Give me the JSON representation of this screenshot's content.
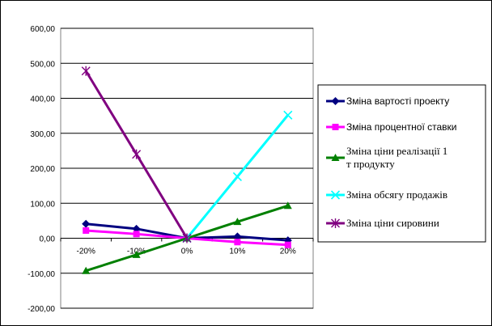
{
  "chart_data": {
    "type": "line",
    "title": "",
    "xlabel": "",
    "ylabel": "",
    "categories": [
      "-20%",
      "-10%",
      "0%",
      "10%",
      "20%"
    ],
    "y_ticks": [
      "600,00",
      "500,00",
      "400,00",
      "300,00",
      "200,00",
      "100,00",
      "0,00",
      "-100,00",
      "-200,00"
    ],
    "ylim": [
      -200,
      600
    ],
    "grid": true,
    "legend_position": "right",
    "series": [
      {
        "name": "Зміна вартості проекту",
        "color": "#000080",
        "marker": "diamond",
        "values": [
          41,
          27,
          0,
          5,
          -6
        ]
      },
      {
        "name": "Зміна процентної ставки",
        "color": "#FF00FF",
        "marker": "square",
        "values": [
          22,
          12,
          0,
          -11,
          -19
        ]
      },
      {
        "name_lines": [
          "Зміна ціни реалізації 1",
          "т продукту"
        ],
        "color": "#008000",
        "marker": "triangle",
        "values": [
          -93,
          -47,
          0,
          47,
          93
        ]
      },
      {
        "name": "Зміна обсягу продажів",
        "color": "#00FFFF",
        "marker": "x",
        "values": [
          null,
          null,
          0,
          176,
          352
        ]
      },
      {
        "name": "Зміна ціни сировини",
        "color": "#800080",
        "marker": "star",
        "values": [
          478,
          240,
          0,
          null,
          null
        ]
      }
    ]
  }
}
